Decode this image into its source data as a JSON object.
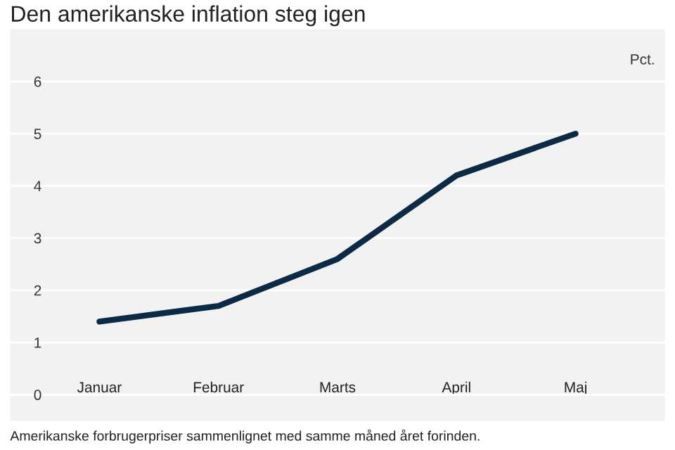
{
  "chart_data": {
    "type": "line",
    "title": "Den amerikanske inflation steg igen",
    "ylabel": "Pct.",
    "categories": [
      "Januar",
      "Februar",
      "Marts",
      "April",
      "Maj"
    ],
    "series": [
      {
        "color": "#0b2a45",
        "values": [
          1.4,
          1.7,
          2.6,
          4.2,
          5.0
        ]
      }
    ],
    "ylim": [
      -0.5,
      7
    ],
    "yticks": [
      0,
      1,
      2,
      3,
      4,
      5,
      6
    ],
    "grid": "y",
    "marker": "none",
    "line_style": "solid",
    "annotations": [
      "Amerikanske forbrugerpriser sammenlignet med samme måned året forinden."
    ]
  }
}
